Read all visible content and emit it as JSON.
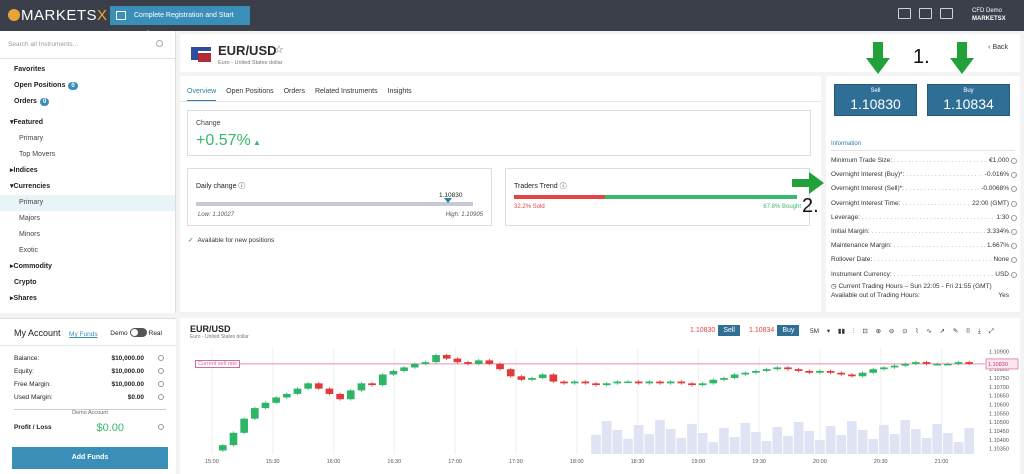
{
  "topbar": {
    "logo_text": "MARKETS",
    "logo_x": "X",
    "register_label": "Complete Registration and Start Trading",
    "account_mode": "CFD Demo",
    "account_brand": "MARKETSX"
  },
  "sidebar": {
    "search_placeholder": "Search all Instruments...",
    "items": [
      {
        "label": "Favorites"
      },
      {
        "label": "Open Positions",
        "badge": "0"
      },
      {
        "label": "Orders",
        "badge": "0"
      },
      {
        "label": "Featured"
      },
      {
        "label": "Primary"
      },
      {
        "label": "Top Movers"
      },
      {
        "label": "Indices"
      },
      {
        "label": "Currencies"
      },
      {
        "label": "Primary"
      },
      {
        "label": "Majors"
      },
      {
        "label": "Minors"
      },
      {
        "label": "Exotic"
      },
      {
        "label": "Commodity"
      },
      {
        "label": "Crypto"
      },
      {
        "label": "Shares"
      }
    ]
  },
  "account": {
    "title": "My Account",
    "funds_link": "My Funds",
    "demo_label": "Demo",
    "real_label": "Real",
    "balance_label": "Balance:",
    "balance": "$10,000.00",
    "equity_label": "Equity:",
    "equity": "$10,000.00",
    "free_margin_label": "Free Margin:",
    "free_margin": "$10,000.00",
    "used_margin_label": "Used Margin:",
    "used_margin": "$0.00",
    "demo_account": "Demo Account",
    "pl_label": "Profit / Loss",
    "pl": "$0.00",
    "add_funds": "Add Funds"
  },
  "instrument": {
    "pair": "EUR/USD",
    "name": "Euro - United States dollar",
    "back": "Back"
  },
  "tabs": [
    "Overview",
    "Open Positions",
    "Orders",
    "Related Instruments",
    "Insights"
  ],
  "overview": {
    "change_label": "Change",
    "change_value": "+0.57%",
    "daily_label": "Daily change",
    "daily_current": "1.10830",
    "low": "Low: 1.10027",
    "high": "High: 1.10905",
    "daily_position": 0.91,
    "trend_label": "Traders Trend",
    "sold": "32.2% Sold",
    "bought": "67.8% Bought",
    "sold_fraction": 0.322,
    "available": "Available for new positions"
  },
  "quotes": {
    "sell_label": "Sell",
    "sell": "1.10830",
    "buy_label": "Buy",
    "buy": "1.10834"
  },
  "info": {
    "title": "Information",
    "rows": [
      {
        "label": "Minimum Trade Size:",
        "value": "€1,000"
      },
      {
        "label": "Overnight Interest (Buy)*:",
        "value": "-0.016%"
      },
      {
        "label": "Overnight Interest (Sell)*:",
        "value": "-0.0068%"
      },
      {
        "label": "Overnight Interest Time:",
        "value": "22:00 (GMT)"
      },
      {
        "label": "Leverage:",
        "value": "1:30"
      },
      {
        "label": "Initial Margin:",
        "value": "3.334%"
      },
      {
        "label": "Maintenance Margin:",
        "value": "1.667%"
      },
      {
        "label": "Rollover Date:",
        "value": "None"
      },
      {
        "label": "Instrument Currency:",
        "value": "USD"
      }
    ],
    "hours_label": "Current Trading Hours",
    "hours_value": "Sun 22:05 - Fri 21:55 (GMT)",
    "out_label": "Available out of Trading Hours:",
    "out_value": "Yes"
  },
  "annotations": {
    "a1": "1.",
    "a2": "2."
  },
  "chart": {
    "pair": "EUR/USD",
    "name": "Euro - United States dollar",
    "sell": "1.10830",
    "sell_label": "Sell",
    "buy": "1.10834",
    "buy_label": "Buy",
    "timeframe": "5M",
    "current_sell_label": "Current sell rate",
    "current_price_label": "1.10830",
    "y_ticks": [
      "1.10900",
      "1.10850",
      "1.10800",
      "1.10750",
      "1.10700",
      "1.10650",
      "1.10600",
      "1.10550",
      "1.10500",
      "1.10450",
      "1.10400",
      "1.10350"
    ],
    "x_ticks": [
      "15:00",
      "15:30",
      "16:00",
      "16:30",
      "17:00",
      "17:30",
      "18:00",
      "18:30",
      "19:00",
      "19:30",
      "20:00",
      "20:30",
      "21:00"
    ]
  },
  "chart_data": {
    "type": "candlestick",
    "x_ticks": [
      "15:00",
      "15:30",
      "16:00",
      "16:30",
      "17:00",
      "17:30",
      "18:00",
      "18:30",
      "19:00",
      "19:30",
      "20:00",
      "20:30",
      "21:00"
    ],
    "ylim": [
      1.1032,
      1.1092
    ],
    "closes": [
      1.1037,
      1.1044,
      1.1052,
      1.1058,
      1.1061,
      1.1064,
      1.1066,
      1.1069,
      1.1072,
      1.1069,
      1.1066,
      1.1063,
      1.1068,
      1.1072,
      1.1071,
      1.1077,
      1.1079,
      1.1081,
      1.1083,
      1.1084,
      1.1088,
      1.1086,
      1.1084,
      1.1083,
      1.1085,
      1.1083,
      1.108,
      1.1076,
      1.1074,
      1.1075,
      1.1077,
      1.1073,
      1.1072,
      1.1073,
      1.1072,
      1.1071,
      1.1072,
      1.1073,
      1.1073,
      1.1072,
      1.1073,
      1.1072,
      1.1073,
      1.1072,
      1.1071,
      1.1072,
      1.1074,
      1.1075,
      1.1077,
      1.1078,
      1.1079,
      1.108,
      1.1081,
      1.108,
      1.1079,
      1.1078,
      1.1079,
      1.1078,
      1.1077,
      1.1076,
      1.1078,
      1.108,
      1.1081,
      1.1082,
      1.1083,
      1.1084,
      1.1083,
      1.1083,
      1.1083,
      1.1084,
      1.1083
    ]
  }
}
